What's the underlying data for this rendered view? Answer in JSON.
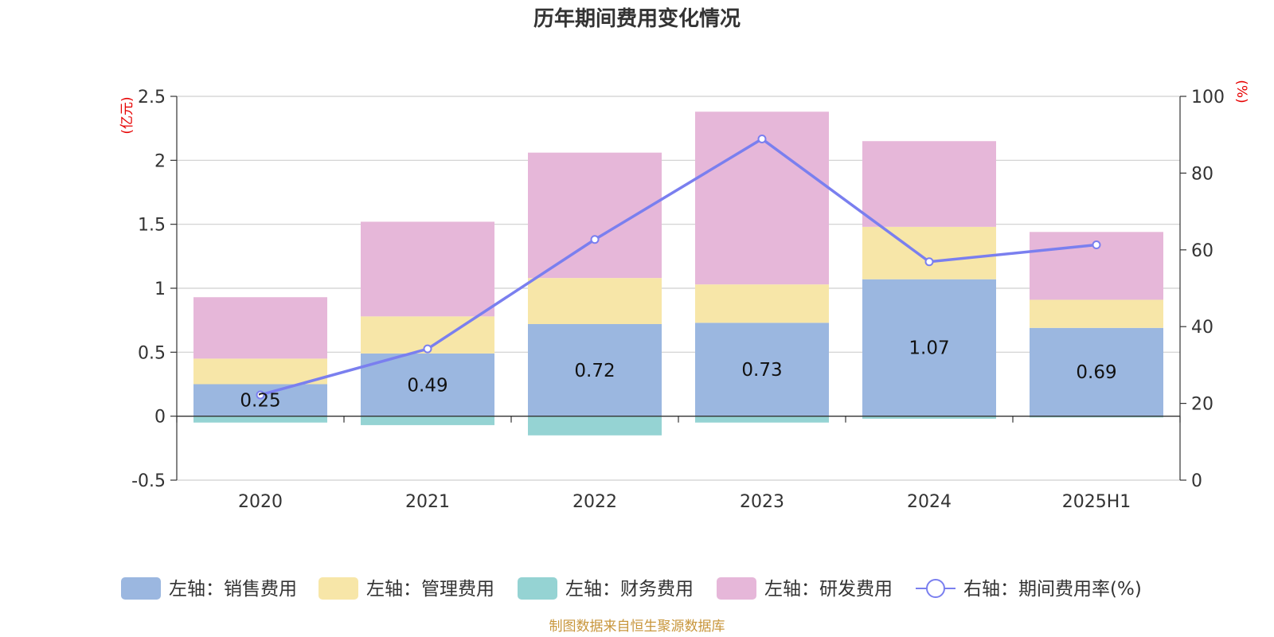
{
  "chart_data": {
    "type": "bar",
    "title": "历年期间费用变化情况",
    "categories": [
      "2020",
      "2021",
      "2022",
      "2023",
      "2024",
      "2025H1"
    ],
    "stacked": true,
    "series": [
      {
        "name": "左轴：销售费用",
        "axis": "left",
        "type": "bar",
        "color": "#9bb7e0",
        "values": [
          0.25,
          0.49,
          0.72,
          0.73,
          1.07,
          0.69
        ],
        "labels": [
          "0.25",
          "0.49",
          "0.72",
          "0.73",
          "1.07",
          "0.69"
        ]
      },
      {
        "name": "左轴：管理费用",
        "axis": "left",
        "type": "bar",
        "color": "#f7e6a8",
        "values": [
          0.2,
          0.29,
          0.36,
          0.3,
          0.41,
          0.22
        ]
      },
      {
        "name": "左轴：财务费用",
        "axis": "left",
        "type": "bar",
        "color": "#95d3d3",
        "values": [
          -0.05,
          -0.07,
          -0.15,
          -0.05,
          -0.02,
          -0.01
        ]
      },
      {
        "name": "左轴：研发费用",
        "axis": "left",
        "type": "bar",
        "color": "#e6b7d9",
        "values": [
          0.48,
          0.74,
          0.98,
          1.35,
          0.67,
          0.53
        ]
      },
      {
        "name": "右轴：期间费用率(%)",
        "axis": "right",
        "type": "line",
        "color": "#7a7fef",
        "values": [
          22.2,
          34.2,
          62.7,
          88.9,
          56.9,
          61.3
        ]
      }
    ],
    "left_axis": {
      "unit": "(亿元)",
      "ylim": [
        -0.5,
        2.5
      ],
      "ticks": [
        "-0.5",
        "0",
        "0.5",
        "1",
        "1.5",
        "2",
        "2.5"
      ]
    },
    "right_axis": {
      "unit": "(%)",
      "ylim": [
        0,
        100
      ],
      "ticks": [
        "0",
        "20",
        "40",
        "60",
        "80",
        "100"
      ]
    },
    "grid": true,
    "legend_position": "bottom",
    "source": "制图数据来自恒生聚源数据库"
  }
}
